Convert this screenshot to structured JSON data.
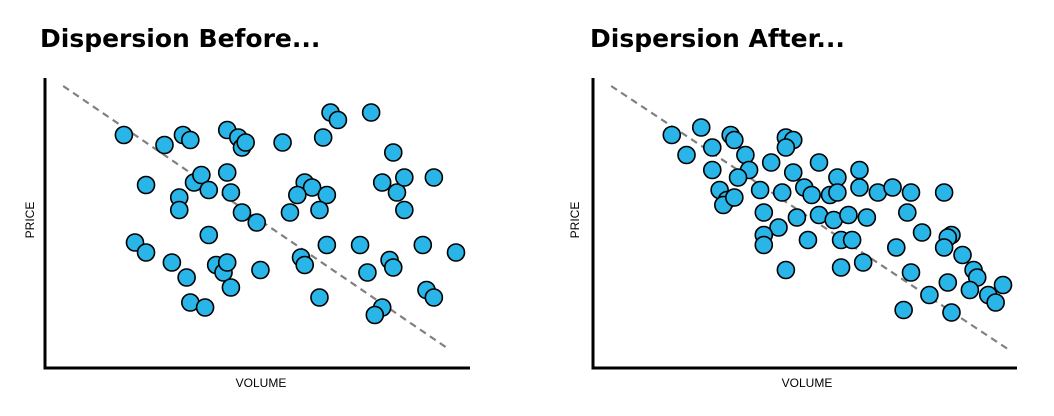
{
  "chart_data": [
    {
      "type": "scatter",
      "title": "Dispersion Before...",
      "xlabel": "VOLUME",
      "ylabel": "PRICE",
      "xlim": [
        0,
        100
      ],
      "ylim": [
        0,
        100
      ],
      "grid": false,
      "legend": "none",
      "colors": {
        "point": "#29B5E8",
        "stroke": "#000000",
        "trend": "#808080",
        "axis": "#000000"
      },
      "trend_line": {
        "x": [
          2,
          97
        ],
        "y": [
          100,
          3
        ]
      },
      "points": [
        {
          "x": 10,
          "y": 86
        },
        {
          "x": 21,
          "y": 82
        },
        {
          "x": 26,
          "y": 86
        },
        {
          "x": 28,
          "y": 84
        },
        {
          "x": 38,
          "y": 88
        },
        {
          "x": 41,
          "y": 85
        },
        {
          "x": 42,
          "y": 81
        },
        {
          "x": 43,
          "y": 83
        },
        {
          "x": 53,
          "y": 83
        },
        {
          "x": 64,
          "y": 85
        },
        {
          "x": 66,
          "y": 95
        },
        {
          "x": 68,
          "y": 92
        },
        {
          "x": 77,
          "y": 95
        },
        {
          "x": 83,
          "y": 79
        },
        {
          "x": 16,
          "y": 66
        },
        {
          "x": 29,
          "y": 67
        },
        {
          "x": 31,
          "y": 70
        },
        {
          "x": 33,
          "y": 64
        },
        {
          "x": 38,
          "y": 71
        },
        {
          "x": 39,
          "y": 63
        },
        {
          "x": 59,
          "y": 67
        },
        {
          "x": 61,
          "y": 65
        },
        {
          "x": 57,
          "y": 62
        },
        {
          "x": 65,
          "y": 62
        },
        {
          "x": 80,
          "y": 67
        },
        {
          "x": 84,
          "y": 63
        },
        {
          "x": 86,
          "y": 69
        },
        {
          "x": 94,
          "y": 69
        },
        {
          "x": 25,
          "y": 61
        },
        {
          "x": 25,
          "y": 56
        },
        {
          "x": 42,
          "y": 55
        },
        {
          "x": 46,
          "y": 51
        },
        {
          "x": 55,
          "y": 55
        },
        {
          "x": 63,
          "y": 56
        },
        {
          "x": 86,
          "y": 56
        },
        {
          "x": 33,
          "y": 46
        },
        {
          "x": 13,
          "y": 43
        },
        {
          "x": 16,
          "y": 39
        },
        {
          "x": 23,
          "y": 35
        },
        {
          "x": 27,
          "y": 29
        },
        {
          "x": 35,
          "y": 34
        },
        {
          "x": 37,
          "y": 31
        },
        {
          "x": 38,
          "y": 35
        },
        {
          "x": 39,
          "y": 25
        },
        {
          "x": 47,
          "y": 32
        },
        {
          "x": 58,
          "y": 37
        },
        {
          "x": 59,
          "y": 34
        },
        {
          "x": 65,
          "y": 42
        },
        {
          "x": 74,
          "y": 42
        },
        {
          "x": 91,
          "y": 42
        },
        {
          "x": 100,
          "y": 39
        },
        {
          "x": 76,
          "y": 31
        },
        {
          "x": 82,
          "y": 36
        },
        {
          "x": 83,
          "y": 33
        },
        {
          "x": 28,
          "y": 19
        },
        {
          "x": 32,
          "y": 17
        },
        {
          "x": 63,
          "y": 21
        },
        {
          "x": 80,
          "y": 17
        },
        {
          "x": 78,
          "y": 14
        },
        {
          "x": 92,
          "y": 24
        },
        {
          "x": 94,
          "y": 21
        }
      ]
    },
    {
      "type": "scatter",
      "title": "Dispersion After...",
      "xlabel": "VOLUME",
      "ylabel": "PRICE",
      "xlim": [
        0,
        100
      ],
      "ylim": [
        0,
        100
      ],
      "grid": false,
      "legend": "none",
      "colors": {
        "point": "#29B5E8",
        "stroke": "#000000",
        "trend": "#808080",
        "axis": "#000000"
      },
      "trend_line": {
        "x": [
          2,
          100
        ],
        "y": [
          100,
          3
        ]
      },
      "points": [
        {
          "x": 10,
          "y": 86
        },
        {
          "x": 18,
          "y": 89
        },
        {
          "x": 26,
          "y": 86
        },
        {
          "x": 27,
          "y": 84
        },
        {
          "x": 41,
          "y": 85
        },
        {
          "x": 43,
          "y": 84
        },
        {
          "x": 41,
          "y": 81
        },
        {
          "x": 14,
          "y": 78
        },
        {
          "x": 21,
          "y": 81
        },
        {
          "x": 30,
          "y": 78
        },
        {
          "x": 37,
          "y": 75
        },
        {
          "x": 50,
          "y": 75
        },
        {
          "x": 21,
          "y": 72
        },
        {
          "x": 31,
          "y": 72
        },
        {
          "x": 28,
          "y": 69
        },
        {
          "x": 43,
          "y": 71
        },
        {
          "x": 55,
          "y": 69
        },
        {
          "x": 61,
          "y": 72
        },
        {
          "x": 23,
          "y": 64
        },
        {
          "x": 25,
          "y": 60
        },
        {
          "x": 24,
          "y": 58
        },
        {
          "x": 27,
          "y": 61
        },
        {
          "x": 34,
          "y": 64
        },
        {
          "x": 40,
          "y": 63
        },
        {
          "x": 46,
          "y": 65
        },
        {
          "x": 48,
          "y": 62
        },
        {
          "x": 53,
          "y": 62
        },
        {
          "x": 55,
          "y": 63
        },
        {
          "x": 61,
          "y": 65
        },
        {
          "x": 66,
          "y": 63
        },
        {
          "x": 70,
          "y": 65
        },
        {
          "x": 75,
          "y": 63
        },
        {
          "x": 84,
          "y": 63
        },
        {
          "x": 35,
          "y": 55
        },
        {
          "x": 44,
          "y": 53
        },
        {
          "x": 50,
          "y": 54
        },
        {
          "x": 54,
          "y": 52
        },
        {
          "x": 58,
          "y": 54
        },
        {
          "x": 63,
          "y": 53
        },
        {
          "x": 74,
          "y": 55
        },
        {
          "x": 39,
          "y": 49
        },
        {
          "x": 35,
          "y": 46
        },
        {
          "x": 47,
          "y": 44
        },
        {
          "x": 56,
          "y": 44
        },
        {
          "x": 59,
          "y": 44
        },
        {
          "x": 71,
          "y": 41
        },
        {
          "x": 78,
          "y": 47
        },
        {
          "x": 86,
          "y": 46
        },
        {
          "x": 85,
          "y": 45
        },
        {
          "x": 84,
          "y": 41
        },
        {
          "x": 89,
          "y": 38
        },
        {
          "x": 35,
          "y": 42
        },
        {
          "x": 41,
          "y": 32
        },
        {
          "x": 56,
          "y": 33
        },
        {
          "x": 62,
          "y": 35
        },
        {
          "x": 75,
          "y": 31
        },
        {
          "x": 92,
          "y": 32
        },
        {
          "x": 93,
          "y": 29
        },
        {
          "x": 85,
          "y": 27
        },
        {
          "x": 91,
          "y": 24
        },
        {
          "x": 80,
          "y": 22
        },
        {
          "x": 73,
          "y": 16
        },
        {
          "x": 86,
          "y": 15
        },
        {
          "x": 96,
          "y": 22
        },
        {
          "x": 98,
          "y": 19
        },
        {
          "x": 100,
          "y": 26
        }
      ]
    }
  ]
}
